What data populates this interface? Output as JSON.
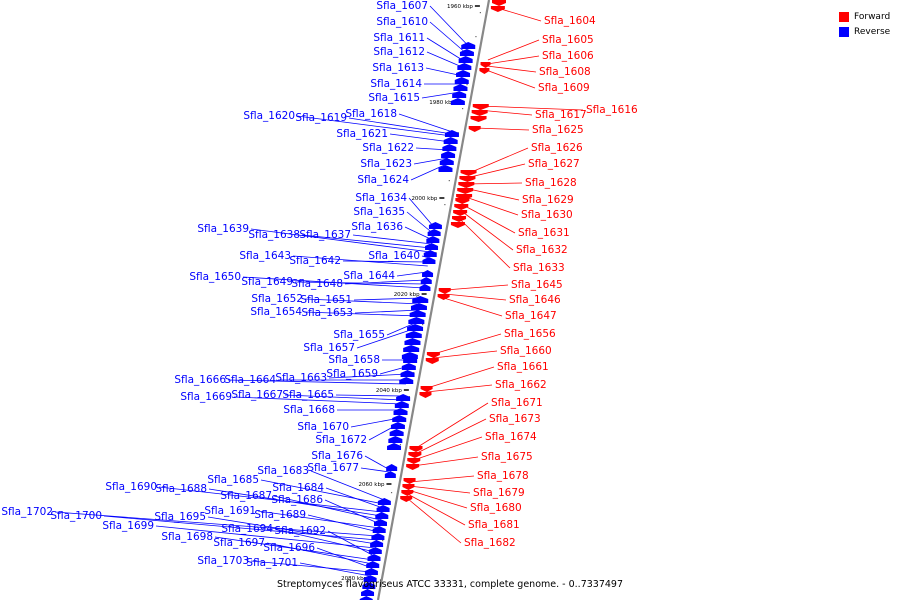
{
  "legend": {
    "forward_label": "Forward",
    "reverse_label": "Reverse",
    "forward_color": "#ff0000",
    "reverse_color": "#0000ff"
  },
  "caption": "Streptomyces flavogriseus ATCC 33331, complete genome. - 0..7337497",
  "backbone_color": "#888888",
  "ticks": [
    "1960 kbp",
    "1980 kbp",
    "2000 kbp",
    "2020 kbp",
    "2040 kbp",
    "2060 kbp",
    "2080 kbp"
  ],
  "reverse_genes": [
    "Sfla_1607",
    "Sfla_1610",
    "Sfla_1611",
    "Sfla_1612",
    "Sfla_1613",
    "Sfla_1614",
    "Sfla_1615",
    "Sfla_1618",
    "Sfla_1619",
    "Sfla_1620",
    "Sfla_1621",
    "Sfla_1622",
    "Sfla_1623",
    "Sfla_1624",
    "Sfla_1634",
    "Sfla_1635",
    "Sfla_1636",
    "Sfla_1637",
    "Sfla_1638",
    "Sfla_1639",
    "Sfla_1640",
    "Sfla_1642",
    "Sfla_1643",
    "Sfla_1644",
    "Sfla_1648",
    "Sfla_1649",
    "Sfla_1650",
    "Sfla_1651",
    "Sfla_1652",
    "Sfla_1653",
    "Sfla_1654",
    "Sfla_1655",
    "Sfla_1657",
    "Sfla_1658",
    "Sfla_1659",
    "Sfla_1663",
    "Sfla_1664",
    "Sfla_1666",
    "Sfla_1665",
    "Sfla_1667",
    "Sfla_1669",
    "Sfla_1668",
    "Sfla_1670",
    "Sfla_1672",
    "Sfla_1676",
    "Sfla_1677",
    "Sfla_1683",
    "Sfla_1685",
    "Sfla_1684",
    "Sfla_1690",
    "Sfla_1688",
    "Sfla_1687",
    "Sfla_1686",
    "Sfla_1691",
    "Sfla_1689",
    "Sfla_1702",
    "Sfla_1700",
    "Sfla_1695",
    "Sfla_1699",
    "Sfla_1694",
    "Sfla_1692",
    "Sfla_1698",
    "Sfla_1697",
    "Sfla_1696",
    "Sfla_1703",
    "Sfla_1701"
  ],
  "forward_genes": [
    "Sfla_1604",
    "Sfla_1605",
    "Sfla_1606",
    "Sfla_1608",
    "Sfla_1609",
    "Sfla_1616",
    "Sfla_1617",
    "Sfla_1625",
    "Sfla_1626",
    "Sfla_1627",
    "Sfla_1628",
    "Sfla_1629",
    "Sfla_1630",
    "Sfla_1631",
    "Sfla_1632",
    "Sfla_1633",
    "Sfla_1645",
    "Sfla_1646",
    "Sfla_1647",
    "Sfla_1656",
    "Sfla_1660",
    "Sfla_1661",
    "Sfla_1662",
    "Sfla_1671",
    "Sfla_1673",
    "Sfla_1674",
    "Sfla_1675",
    "Sfla_1678",
    "Sfla_1679",
    "Sfla_1680",
    "Sfla_1681",
    "Sfla_1682"
  ]
}
